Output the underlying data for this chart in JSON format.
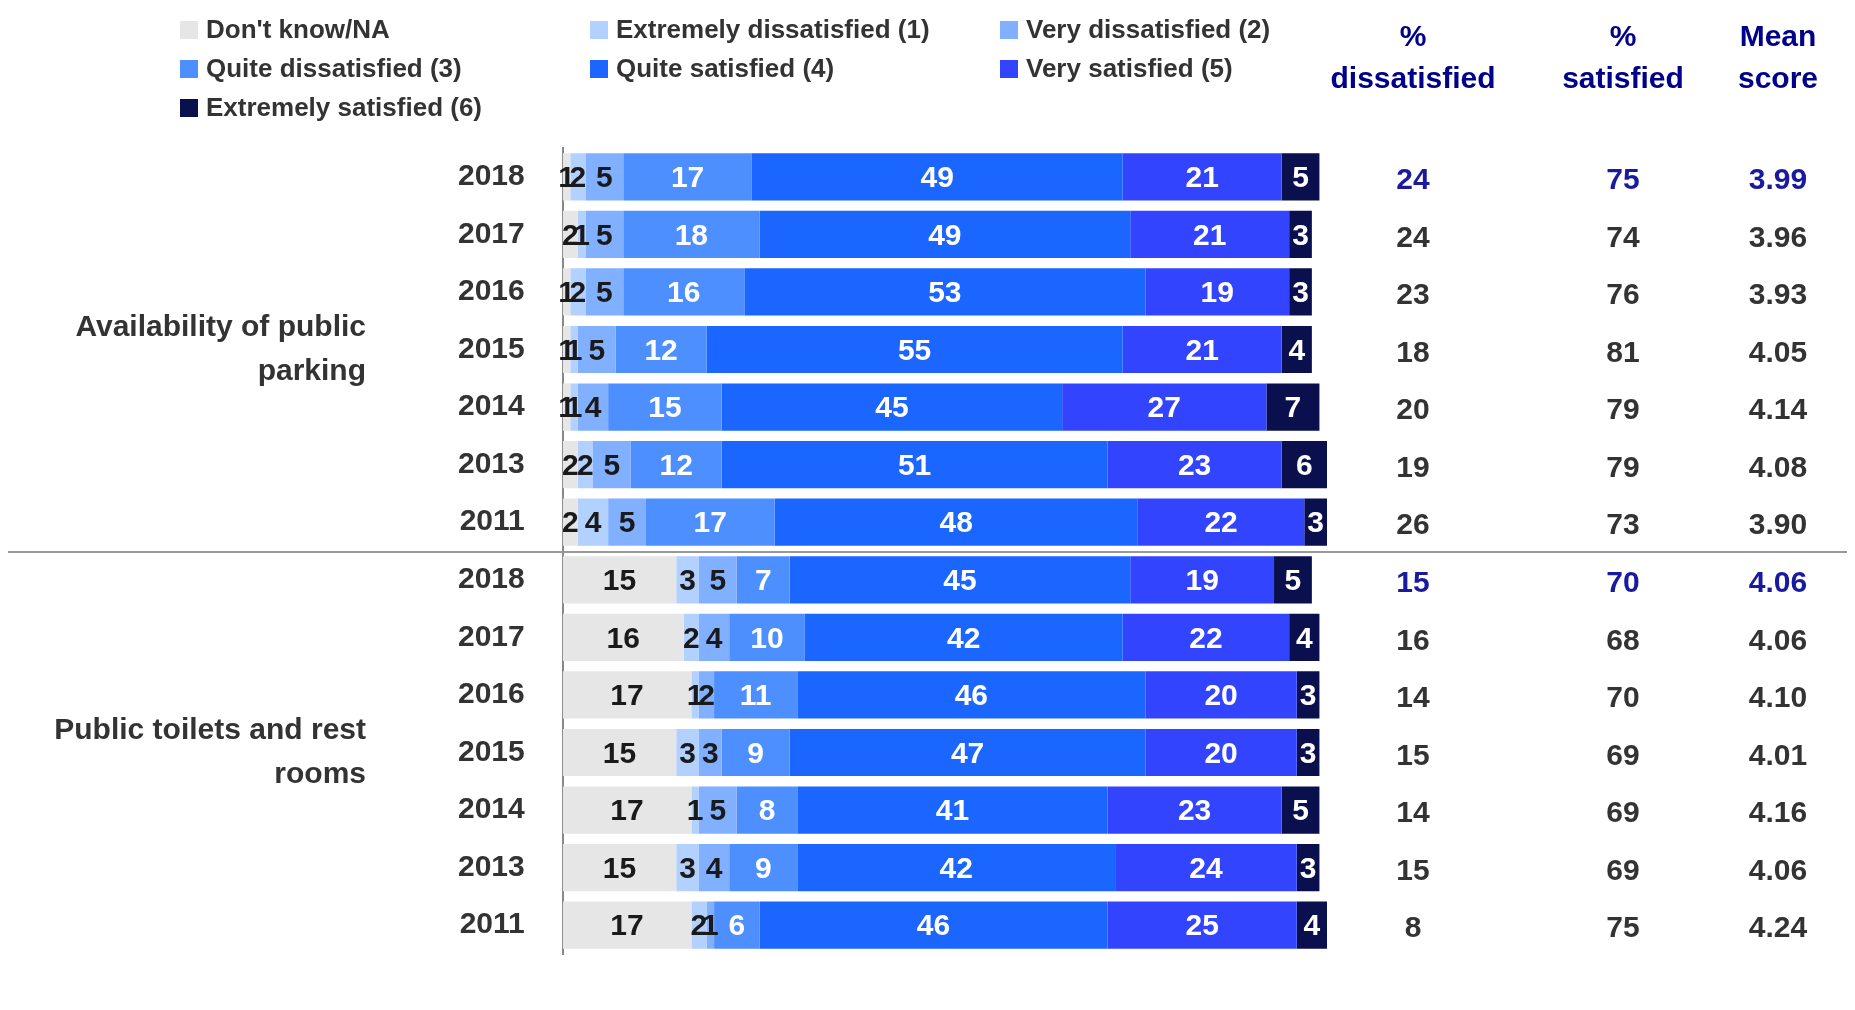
{
  "chart_data": {
    "type": "bar",
    "orientation": "horizontal",
    "stacked": true,
    "data_labels": true,
    "grid": false,
    "legend": "top",
    "tick_labels": "y",
    "xlim": [
      0,
      101
    ],
    "categories": [
      "2018",
      "2017",
      "2016",
      "2015",
      "2014",
      "2013",
      "2011",
      "2018",
      "2017",
      "2016",
      "2015",
      "2014",
      "2013",
      "2011"
    ],
    "series": [
      {
        "name": "Don't know/NA",
        "color": "#e6e6e6",
        "values": [
          1,
          2,
          1,
          1,
          1,
          2,
          2,
          15,
          16,
          17,
          15,
          17,
          15,
          17
        ]
      },
      {
        "name": "Extremely dissatisfied (1)",
        "color": "#b3d1ff",
        "values": [
          2,
          1,
          2,
          1,
          1,
          2,
          4,
          3,
          2,
          1,
          3,
          1,
          3,
          2
        ]
      },
      {
        "name": "Very dissatisfied (2)",
        "color": "#80b0ff",
        "values": [
          5,
          5,
          5,
          5,
          4,
          5,
          5,
          5,
          4,
          2,
          3,
          5,
          4,
          1
        ]
      },
      {
        "name": "Quite dissatisfied (3)",
        "color": "#4d8fff",
        "values": [
          17,
          18,
          16,
          12,
          15,
          12,
          17,
          7,
          10,
          11,
          9,
          8,
          9,
          6
        ]
      },
      {
        "name": "Quite satisfied (4)",
        "color": "#1a66ff",
        "values": [
          49,
          49,
          53,
          55,
          45,
          51,
          48,
          45,
          42,
          46,
          47,
          41,
          42,
          46
        ]
      },
      {
        "name": "Very satisfied (5)",
        "color": "#3344ff",
        "values": [
          21,
          21,
          19,
          21,
          27,
          23,
          22,
          19,
          22,
          20,
          20,
          23,
          24,
          25
        ]
      },
      {
        "name": "Extremely satisfied (6)",
        "color": "#0a0f4d",
        "values": [
          5,
          3,
          3,
          4,
          7,
          6,
          3,
          5,
          4,
          3,
          3,
          5,
          3,
          4
        ]
      }
    ],
    "annotations": [
      "Availability of public parking",
      "Public toilets and rest rooms",
      "% dissatisfied",
      "% satisfied",
      "Mean score",
      "24",
      "75",
      "3.99",
      "24",
      "74",
      "3.96",
      "23",
      "76",
      "3.93",
      "18",
      "81",
      "4.05",
      "20",
      "79",
      "4.14",
      "19",
      "79",
      "4.08",
      "26",
      "73",
      "3.90",
      "15",
      "70",
      "4.06",
      "16",
      "68",
      "4.06",
      "14",
      "70",
      "4.10",
      "15",
      "69",
      "4.01",
      "14",
      "69",
      "4.16",
      "15",
      "69",
      "4.06",
      "8",
      "75",
      "4.24"
    ]
  }
}
